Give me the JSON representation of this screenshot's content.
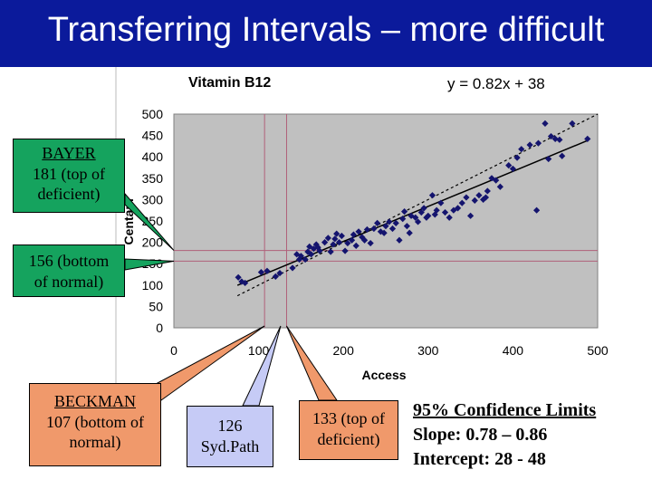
{
  "slide": {
    "title": "Transferring Intervals – more difficult"
  },
  "chart_data": {
    "type": "scatter",
    "title": "Vitamin B12",
    "equation": "y = 0.82x + 38",
    "xlabel": "Access",
    "ylabel": "Centaur",
    "xlim": [
      0,
      500
    ],
    "ylim": [
      0,
      500
    ],
    "xticks": [
      "0",
      "100",
      "200",
      "300",
      "400",
      "500"
    ],
    "yticks": [
      "0",
      "50",
      "100",
      "150",
      "200",
      "250",
      "300",
      "350",
      "400",
      "450",
      "500"
    ],
    "grid": false,
    "marker_color": "#14146e",
    "plot_bg": "#c0c0c0",
    "trendline": {
      "slope": 0.82,
      "intercept": 38
    },
    "identity_line": {
      "slope": 1,
      "intercept": 0
    },
    "reference_lines": {
      "vertical": [
        107,
        133
      ],
      "horizontal": [
        156,
        181
      ]
    },
    "points": [
      [
        76,
        118
      ],
      [
        80,
        108
      ],
      [
        84,
        105
      ],
      [
        103,
        130
      ],
      [
        110,
        133
      ],
      [
        120,
        120
      ],
      [
        125,
        128
      ],
      [
        140,
        140
      ],
      [
        145,
        172
      ],
      [
        150,
        168
      ],
      [
        148,
        160
      ],
      [
        155,
        160
      ],
      [
        158,
        178
      ],
      [
        160,
        190
      ],
      [
        162,
        172
      ],
      [
        165,
        185
      ],
      [
        168,
        195
      ],
      [
        170,
        188
      ],
      [
        172,
        180
      ],
      [
        178,
        200
      ],
      [
        182,
        210
      ],
      [
        185,
        178
      ],
      [
        188,
        195
      ],
      [
        190,
        208
      ],
      [
        192,
        220
      ],
      [
        195,
        200
      ],
      [
        198,
        215
      ],
      [
        202,
        180
      ],
      [
        205,
        198
      ],
      [
        210,
        205
      ],
      [
        212,
        218
      ],
      [
        215,
        192
      ],
      [
        218,
        225
      ],
      [
        222,
        212
      ],
      [
        225,
        205
      ],
      [
        228,
        230
      ],
      [
        232,
        198
      ],
      [
        236,
        232
      ],
      [
        240,
        245
      ],
      [
        244,
        225
      ],
      [
        248,
        222
      ],
      [
        250,
        238
      ],
      [
        254,
        248
      ],
      [
        258,
        232
      ],
      [
        262,
        245
      ],
      [
        266,
        205
      ],
      [
        270,
        255
      ],
      [
        272,
        272
      ],
      [
        275,
        238
      ],
      [
        278,
        222
      ],
      [
        280,
        262
      ],
      [
        285,
        258
      ],
      [
        288,
        248
      ],
      [
        292,
        270
      ],
      [
        295,
        280
      ],
      [
        298,
        258
      ],
      [
        300,
        262
      ],
      [
        305,
        310
      ],
      [
        308,
        265
      ],
      [
        310,
        275
      ],
      [
        315,
        292
      ],
      [
        320,
        270
      ],
      [
        325,
        258
      ],
      [
        330,
        275
      ],
      [
        335,
        280
      ],
      [
        340,
        292
      ],
      [
        345,
        305
      ],
      [
        350,
        262
      ],
      [
        355,
        298
      ],
      [
        360,
        310
      ],
      [
        365,
        300
      ],
      [
        368,
        305
      ],
      [
        370,
        320
      ],
      [
        375,
        350
      ],
      [
        380,
        345
      ],
      [
        385,
        330
      ],
      [
        395,
        380
      ],
      [
        400,
        372
      ],
      [
        405,
        398
      ],
      [
        410,
        418
      ],
      [
        420,
        428
      ],
      [
        428,
        275
      ],
      [
        430,
        432
      ],
      [
        438,
        478
      ],
      [
        442,
        395
      ],
      [
        445,
        448
      ],
      [
        450,
        442
      ],
      [
        455,
        440
      ],
      [
        458,
        402
      ],
      [
        470,
        478
      ],
      [
        488,
        442
      ]
    ]
  },
  "callouts": {
    "bayer": {
      "name": "BAYER",
      "line2": "181 (top of",
      "line3": "deficient)"
    },
    "bayer_bottom": {
      "line1": "156 (bottom",
      "line2": "of normal)"
    },
    "beckman": {
      "name": "BECKMAN",
      "line2": "107 (bottom of",
      "line3": "normal)"
    },
    "sydpath": {
      "line1": "126",
      "line2": "Syd.Path"
    },
    "top_deficient": {
      "line1": "133 (top of",
      "line2": "deficient)"
    }
  },
  "confidence": {
    "heading": "95% Confidence Limits",
    "slope": "Slope: 0.78 – 0.86",
    "intercept": "Intercept: 28 - 48"
  }
}
